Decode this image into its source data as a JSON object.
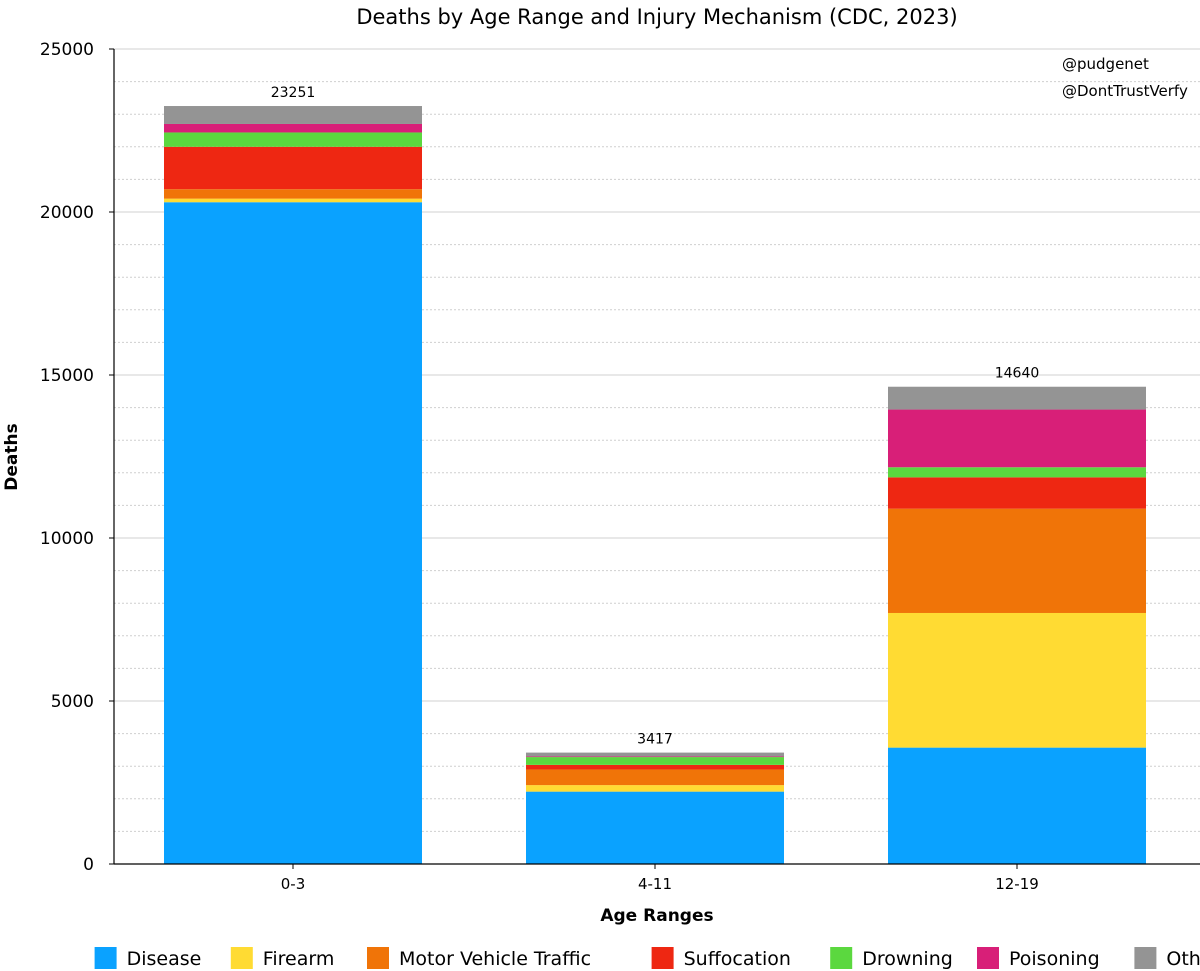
{
  "chart_data": {
    "type": "bar",
    "stacked": true,
    "title": "Deaths by Age Range and Injury Mechanism (CDC, 2023)",
    "xlabel": "Age Ranges",
    "ylabel": "Deaths",
    "ylim": [
      0,
      25000
    ],
    "yticks": [
      0,
      5000,
      10000,
      15000,
      20000,
      25000
    ],
    "minor_grid_step": 1000,
    "grid": true,
    "legend_position": "bottom",
    "categories": [
      "0-3",
      "4-11",
      "12-19"
    ],
    "totals": [
      23251,
      3417,
      14640
    ],
    "series": [
      {
        "name": "Disease",
        "color": "#0aa2ff",
        "values": [
          20300,
          2220,
          3570
        ]
      },
      {
        "name": "Firearm",
        "color": "#ffdb33",
        "values": [
          110,
          200,
          4130
        ]
      },
      {
        "name": "Motor Vehicle Traffic",
        "color": "#f07408",
        "values": [
          290,
          480,
          3200
        ]
      },
      {
        "name": "Suffocation",
        "color": "#ee2712",
        "values": [
          1300,
          140,
          960
        ]
      },
      {
        "name": "Drowning",
        "color": "#5bd83f",
        "values": [
          440,
          240,
          310
        ]
      },
      {
        "name": "Poisoning",
        "color": "#d81f78",
        "values": [
          260,
          20,
          1770
        ]
      },
      {
        "name": "Other",
        "color": "#949494",
        "values": [
          551,
          117,
          700
        ]
      }
    ]
  },
  "credits": [
    "@pudgenet",
    "@DontTrustVerfy"
  ]
}
